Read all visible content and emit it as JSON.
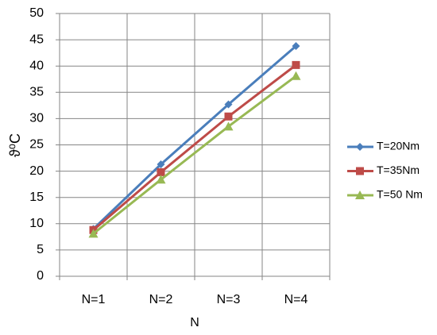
{
  "chart_data": {
    "type": "line",
    "x_label": "N",
    "y_label": "ϑ⁰C",
    "categories": [
      "N=1",
      "N=2",
      "N=3",
      "N=4"
    ],
    "series": [
      {
        "name": "T=20Nm",
        "color": "#4a7ebb",
        "marker": "diamond",
        "values": [
          9,
          21.3,
          32.7,
          43.8
        ]
      },
      {
        "name": "T=35Nm",
        "color": "#be4b48",
        "marker": "square",
        "values": [
          8.8,
          19.8,
          30.4,
          40.2
        ]
      },
      {
        "name": "T=50 Nm",
        "color": "#98b954",
        "marker": "triangle",
        "values": [
          8.1,
          18.4,
          28.5,
          38.1
        ]
      }
    ],
    "ylim": [
      0,
      50
    ],
    "yticks": [
      0,
      5,
      10,
      15,
      20,
      25,
      30,
      35,
      40,
      45,
      50
    ],
    "grid": true,
    "legend": "right"
  }
}
